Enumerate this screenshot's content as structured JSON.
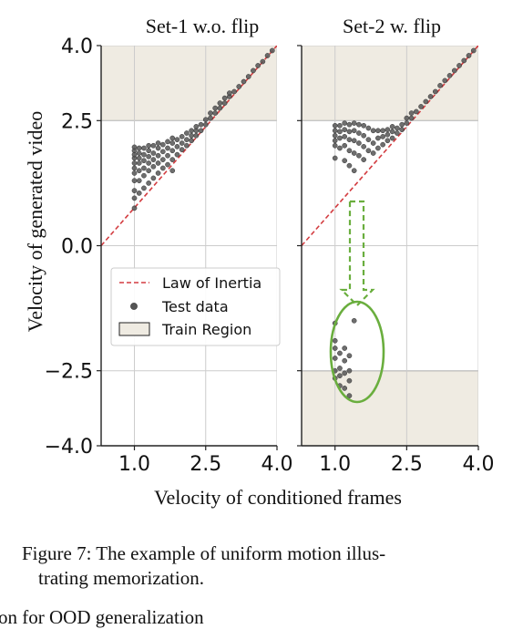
{
  "chart_data": [
    {
      "type": "scatter",
      "title": "Set-1 w.o. flip",
      "xlim": [
        0.3,
        4.0
      ],
      "ylim": [
        -4.0,
        4.0
      ],
      "xticks": [
        "1.0",
        "2.5",
        "4.0"
      ],
      "yticks": [
        "4.0",
        "2.5",
        "0.0",
        "−2.5",
        "−4.0"
      ],
      "grid": true,
      "train_region": [
        {
          "y0": 2.5,
          "y1": 4.0
        }
      ],
      "series": [
        {
          "kind": "line",
          "x": [
            0.3,
            4.0
          ],
          "y": [
            0.0,
            4.0
          ]
        },
        {
          "kind": "points",
          "points": [
            [
              1.0,
              0.75
            ],
            [
              1.0,
              0.95
            ],
            [
              1.0,
              1.1
            ],
            [
              1.0,
              1.3
            ],
            [
              1.0,
              1.45
            ],
            [
              1.0,
              1.55
            ],
            [
              1.0,
              1.65
            ],
            [
              1.0,
              1.75
            ],
            [
              1.0,
              1.82
            ],
            [
              1.0,
              1.9
            ],
            [
              1.0,
              1.97
            ],
            [
              1.1,
              1.05
            ],
            [
              1.1,
              1.3
            ],
            [
              1.1,
              1.5
            ],
            [
              1.1,
              1.65
            ],
            [
              1.1,
              1.75
            ],
            [
              1.1,
              1.85
            ],
            [
              1.1,
              1.95
            ],
            [
              1.2,
              1.15
            ],
            [
              1.2,
              1.4
            ],
            [
              1.2,
              1.55
            ],
            [
              1.2,
              1.7
            ],
            [
              1.2,
              1.82
            ],
            [
              1.2,
              1.95
            ],
            [
              1.3,
              1.25
            ],
            [
              1.3,
              1.5
            ],
            [
              1.3,
              1.65
            ],
            [
              1.3,
              1.78
            ],
            [
              1.3,
              1.9
            ],
            [
              1.3,
              2.0
            ],
            [
              1.4,
              1.35
            ],
            [
              1.4,
              1.58
            ],
            [
              1.4,
              1.72
            ],
            [
              1.4,
              1.85
            ],
            [
              1.4,
              2.0
            ],
            [
              1.5,
              1.45
            ],
            [
              1.5,
              1.65
            ],
            [
              1.5,
              1.8
            ],
            [
              1.5,
              1.95
            ],
            [
              1.5,
              2.05
            ],
            [
              1.6,
              1.55
            ],
            [
              1.6,
              1.72
            ],
            [
              1.6,
              1.88
            ],
            [
              1.6,
              2.02
            ],
            [
              1.7,
              1.62
            ],
            [
              1.7,
              1.8
            ],
            [
              1.7,
              1.95
            ],
            [
              1.7,
              2.08
            ],
            [
              1.8,
              1.5
            ],
            [
              1.8,
              1.72
            ],
            [
              1.8,
              1.9
            ],
            [
              1.8,
              2.05
            ],
            [
              1.8,
              2.15
            ],
            [
              1.9,
              1.82
            ],
            [
              1.9,
              1.98
            ],
            [
              1.9,
              2.12
            ],
            [
              2.0,
              1.92
            ],
            [
              2.0,
              2.05
            ],
            [
              2.0,
              2.18
            ],
            [
              2.1,
              2.0
            ],
            [
              2.1,
              2.12
            ],
            [
              2.1,
              2.25
            ],
            [
              2.2,
              2.1
            ],
            [
              2.2,
              2.2
            ],
            [
              2.2,
              2.3
            ],
            [
              2.3,
              2.2
            ],
            [
              2.3,
              2.3
            ],
            [
              2.3,
              2.38
            ],
            [
              2.4,
              2.3
            ],
            [
              2.4,
              2.42
            ],
            [
              2.5,
              2.42
            ],
            [
              2.5,
              2.52
            ],
            [
              2.6,
              2.55
            ],
            [
              2.6,
              2.65
            ],
            [
              2.7,
              2.65
            ],
            [
              2.7,
              2.75
            ],
            [
              2.8,
              2.75
            ],
            [
              2.8,
              2.85
            ],
            [
              2.9,
              2.85
            ],
            [
              2.9,
              2.95
            ],
            [
              3.0,
              2.98
            ],
            [
              3.0,
              3.05
            ],
            [
              3.1,
              3.08
            ],
            [
              3.2,
              3.18
            ],
            [
              3.3,
              3.28
            ],
            [
              3.4,
              3.38
            ],
            [
              3.5,
              3.5
            ],
            [
              3.6,
              3.6
            ],
            [
              3.7,
              3.68
            ],
            [
              3.8,
              3.8
            ],
            [
              3.9,
              3.9
            ]
          ]
        }
      ]
    },
    {
      "type": "scatter",
      "title": "Set-2 w. flip",
      "xlim": [
        0.3,
        4.0
      ],
      "ylim": [
        -4.0,
        4.0
      ],
      "xticks": [
        "1.0",
        "2.5",
        "4.0"
      ],
      "yticks": [],
      "grid": true,
      "train_region": [
        {
          "y0": 2.5,
          "y1": 4.0
        },
        {
          "y0": -4.0,
          "y1": -2.5
        }
      ],
      "series": [
        {
          "kind": "line",
          "x": [
            0.3,
            4.0
          ],
          "y": [
            0.0,
            4.0
          ]
        },
        {
          "kind": "points",
          "points": [
            [
              1.0,
              1.75
            ],
            [
              1.0,
              2.0
            ],
            [
              1.0,
              2.1
            ],
            [
              1.0,
              2.2
            ],
            [
              1.0,
              2.3
            ],
            [
              1.0,
              2.4
            ],
            [
              1.1,
              1.95
            ],
            [
              1.1,
              2.15
            ],
            [
              1.1,
              2.28
            ],
            [
              1.1,
              2.4
            ],
            [
              1.2,
              1.7
            ],
            [
              1.2,
              2.0
            ],
            [
              1.2,
              2.18
            ],
            [
              1.2,
              2.32
            ],
            [
              1.2,
              2.45
            ],
            [
              1.3,
              1.6
            ],
            [
              1.3,
              1.9
            ],
            [
              1.3,
              2.12
            ],
            [
              1.3,
              2.28
            ],
            [
              1.3,
              2.42
            ],
            [
              1.4,
              1.5
            ],
            [
              1.4,
              1.85
            ],
            [
              1.4,
              2.1
            ],
            [
              1.4,
              2.3
            ],
            [
              1.4,
              2.45
            ],
            [
              1.5,
              1.8
            ],
            [
              1.5,
              2.05
            ],
            [
              1.5,
              2.25
            ],
            [
              1.5,
              2.42
            ],
            [
              1.6,
              1.72
            ],
            [
              1.6,
              1.98
            ],
            [
              1.6,
              2.2
            ],
            [
              1.6,
              2.4
            ],
            [
              1.7,
              1.9
            ],
            [
              1.7,
              2.12
            ],
            [
              1.7,
              2.35
            ],
            [
              1.8,
              1.85
            ],
            [
              1.8,
              2.05
            ],
            [
              1.8,
              2.3
            ],
            [
              1.9,
              1.95
            ],
            [
              1.9,
              2.15
            ],
            [
              1.9,
              2.3
            ],
            [
              2.0,
              2.02
            ],
            [
              2.0,
              2.18
            ],
            [
              2.0,
              2.3
            ],
            [
              2.1,
              2.1
            ],
            [
              2.1,
              2.22
            ],
            [
              2.1,
              2.32
            ],
            [
              2.2,
              2.15
            ],
            [
              2.2,
              2.28
            ],
            [
              2.2,
              2.38
            ],
            [
              2.3,
              2.25
            ],
            [
              2.3,
              2.35
            ],
            [
              2.4,
              2.32
            ],
            [
              2.4,
              2.42
            ],
            [
              2.5,
              2.45
            ],
            [
              2.5,
              2.55
            ],
            [
              2.6,
              2.55
            ],
            [
              2.6,
              2.65
            ],
            [
              2.7,
              2.68
            ],
            [
              2.8,
              2.78
            ],
            [
              2.9,
              2.88
            ],
            [
              3.0,
              2.98
            ],
            [
              3.1,
              3.08
            ],
            [
              3.2,
              3.2
            ],
            [
              3.3,
              3.3
            ],
            [
              3.4,
              3.4
            ],
            [
              3.5,
              3.5
            ],
            [
              3.6,
              3.6
            ],
            [
              3.7,
              3.7
            ],
            [
              3.8,
              3.8
            ],
            [
              3.9,
              3.9
            ],
            [
              1.0,
              -1.55
            ],
            [
              1.0,
              -1.9
            ],
            [
              1.0,
              -2.05
            ],
            [
              1.0,
              -2.25
            ],
            [
              1.0,
              -2.5
            ],
            [
              1.0,
              -2.65
            ],
            [
              1.1,
              -2.15
            ],
            [
              1.1,
              -2.45
            ],
            [
              1.1,
              -2.6
            ],
            [
              1.1,
              -2.8
            ],
            [
              1.2,
              -2.05
            ],
            [
              1.2,
              -2.3
            ],
            [
              1.2,
              -2.55
            ],
            [
              1.2,
              -2.85
            ],
            [
              1.3,
              -2.2
            ],
            [
              1.3,
              -2.5
            ],
            [
              1.3,
              -2.7
            ],
            [
              1.3,
              -3.0
            ],
            [
              1.4,
              -1.5
            ]
          ]
        }
      ]
    }
  ],
  "axes_text": {
    "ylabel": "Velocity of generated video",
    "xlabel": "Velocity of conditioned frames"
  },
  "legend": {
    "items": [
      "Law of Inertia",
      "Test data",
      "Train Region"
    ]
  },
  "colors": {
    "law_line": "#d33c40",
    "points": "#555555",
    "train_fill": "#efebe2",
    "ellipse": "#6aae3e",
    "arrow": "#6aae3e",
    "grid": "#cccccc"
  },
  "caption": {
    "line1": "Figure 7: The example of uniform motion illus-",
    "line2": "trating memorization."
  },
  "cutoff_text": "on for OOD generalization"
}
